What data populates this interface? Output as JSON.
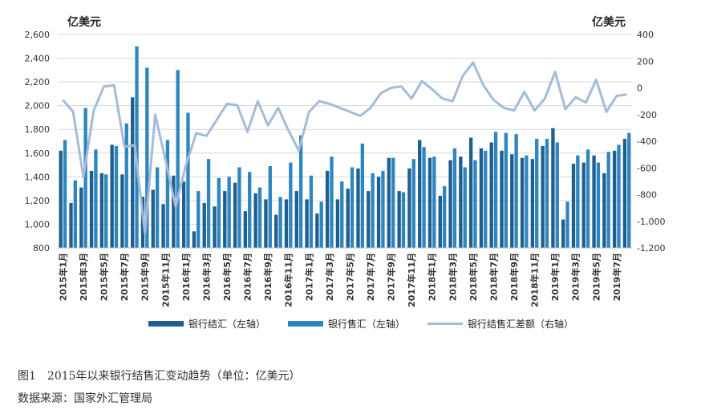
{
  "units": {
    "left": "亿美元",
    "right": "亿美元"
  },
  "caption": "图1　2015年以来银行结售汇变动趋势（单位：亿美元）",
  "source": "数据来源：国家外汇管理局",
  "colors": {
    "sell": "#1f5f8f",
    "buy": "#2e86c1",
    "line": "#a4bcd8",
    "grid": "#d9d9d9"
  },
  "chart_data": {
    "type": "bar",
    "categories": [
      "2015年1月",
      "2015年2月",
      "2015年3月",
      "2015年4月",
      "2015年5月",
      "2015年6月",
      "2015年7月",
      "2015年8月",
      "2015年9月",
      "2015年10月",
      "2015年11月",
      "2015年12月",
      "2016年1月",
      "2016年2月",
      "2016年3月",
      "2016年4月",
      "2016年5月",
      "2016年6月",
      "2016年7月",
      "2016年8月",
      "2016年9月",
      "2016年10月",
      "2016年11月",
      "2016年12月",
      "2017年1月",
      "2017年2月",
      "2017年3月",
      "2017年4月",
      "2017年5月",
      "2017年6月",
      "2017年7月",
      "2017年8月",
      "2017年9月",
      "2017年10月",
      "2017年11月",
      "2017年12月",
      "2018年1月",
      "2018年2月",
      "2018年3月",
      "2018年4月",
      "2018年5月",
      "2018年6月",
      "2018年7月",
      "2018年8月",
      "2018年9月",
      "2018年10月",
      "2018年11月",
      "2018年12月",
      "2019年1月",
      "2019年2月",
      "2019年3月",
      "2019年4月",
      "2019年5月",
      "2019年6月",
      "2019年7月",
      "2019年8月"
    ],
    "xtick_labels": [
      "2015年1月",
      "2015年3月",
      "2015年5月",
      "2015年7月",
      "2015年9月",
      "2015年11月",
      "2016年1月",
      "2016年3月",
      "2016年5月",
      "2016年7月",
      "2016年9月",
      "2016年11月",
      "2017年1月",
      "2017年3月",
      "2017年5月",
      "2017年7月",
      "2017年9月",
      "2017年11月",
      "2018年1月",
      "2018年3月",
      "2018年5月",
      "2018年7月",
      "2018年9月",
      "2018年11月",
      "2019年1月",
      "2019年3月",
      "2019年5月",
      "2019年7月"
    ],
    "series": [
      {
        "name": "银行结汇（左轴）",
        "axis": "left",
        "values": [
          1620,
          1180,
          1310,
          1450,
          1430,
          1670,
          1420,
          2070,
          1230,
          1290,
          1170,
          1410,
          1360,
          940,
          1180,
          1150,
          1280,
          1350,
          1110,
          1260,
          1210,
          1080,
          1210,
          1280,
          1210,
          1090,
          1450,
          1210,
          1300,
          1470,
          1280,
          1400,
          1560,
          1280,
          1470,
          1710,
          1560,
          1240,
          1540,
          1570,
          1730,
          1640,
          1690,
          1620,
          1590,
          1560,
          1550,
          1660,
          1810,
          1040,
          1510,
          1520,
          1580,
          1430,
          1620,
          1720
        ]
      },
      {
        "name": "银行售汇（左轴）",
        "axis": "left",
        "values": [
          1710,
          1370,
          1980,
          1630,
          1420,
          1660,
          1850,
          2500,
          2320,
          1480,
          1710,
          2300,
          1940,
          1280,
          1550,
          1390,
          1400,
          1480,
          1440,
          1310,
          1490,
          1230,
          1520,
          1750,
          1410,
          1190,
          1570,
          1360,
          1480,
          1680,
          1430,
          1450,
          1560,
          1270,
          1550,
          1650,
          1570,
          1320,
          1640,
          1480,
          1540,
          1620,
          1780,
          1770,
          1760,
          1580,
          1720,
          1720,
          1690,
          1190,
          1580,
          1630,
          1520,
          1610,
          1670,
          1770
        ]
      },
      {
        "name": "银行结售汇差额（右轴）",
        "axis": "right",
        "type": "line",
        "values": [
          -90,
          -180,
          -670,
          -170,
          10,
          20,
          -440,
          -430,
          -1090,
          -200,
          -540,
          -890,
          -580,
          -340,
          -360,
          -240,
          -120,
          -130,
          -330,
          -100,
          -280,
          -150,
          -320,
          -470,
          -180,
          -100,
          -120,
          -150,
          -180,
          -210,
          -150,
          -40,
          0,
          10,
          -80,
          50,
          -10,
          -80,
          -100,
          90,
          190,
          20,
          -90,
          -150,
          -170,
          -30,
          -170,
          -80,
          120,
          -160,
          -70,
          -110,
          60,
          -180,
          -60,
          -50
        ]
      }
    ],
    "yleft": {
      "ylim": [
        800,
        2600
      ],
      "ticks": [
        "800",
        "1,000",
        "1,200",
        "1,400",
        "1,600",
        "1,800",
        "2,000",
        "2,200",
        "2,400",
        "2,600"
      ]
    },
    "yright": {
      "ylim": [
        -1200,
        400
      ],
      "ticks": [
        "-1,200",
        "-1,000",
        "-800",
        "-600",
        "-400",
        "-200",
        "0",
        "200",
        "400"
      ]
    },
    "grid": true,
    "legend_position": "bottom"
  }
}
